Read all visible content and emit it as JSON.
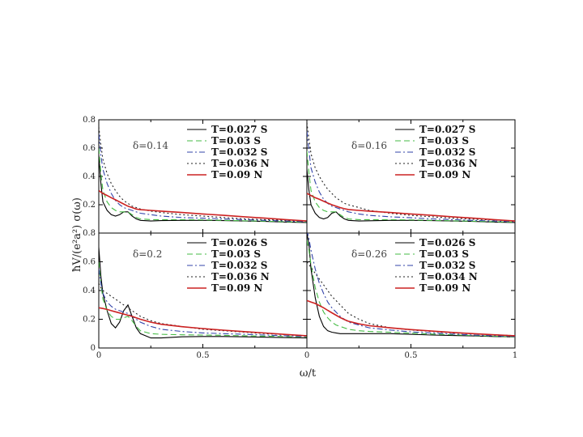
{
  "figure": {
    "ylabel": "ħV/(e²a²) σ(ω)",
    "xlabel": "ω/t"
  },
  "chart_data": [
    {
      "type": "line",
      "label": "δ=0.14",
      "xlim": [
        0,
        1
      ],
      "ylim": [
        0,
        0.8
      ],
      "xticks": [],
      "yticks": [
        "0.2",
        "0.4",
        "0.6",
        "0.8"
      ],
      "legend_position": "top-right",
      "series": [
        {
          "name": "T=0.027 S",
          "color": "#000000",
          "dash": "solid",
          "x": [
            0,
            0.01,
            0.02,
            0.04,
            0.06,
            0.08,
            0.1,
            0.12,
            0.14,
            0.16,
            0.18,
            0.2,
            0.25,
            0.3,
            0.4,
            0.5,
            0.6,
            0.7,
            0.8,
            0.9,
            1.0
          ],
          "y": [
            0.55,
            0.35,
            0.22,
            0.16,
            0.13,
            0.12,
            0.13,
            0.15,
            0.15,
            0.12,
            0.1,
            0.09,
            0.085,
            0.088,
            0.09,
            0.09,
            0.088,
            0.085,
            0.082,
            0.078,
            0.075
          ]
        },
        {
          "name": "T=0.03 S",
          "color": "#44bb44",
          "dash": "dashed",
          "x": [
            0,
            0.01,
            0.02,
            0.04,
            0.06,
            0.08,
            0.1,
            0.12,
            0.14,
            0.16,
            0.18,
            0.2,
            0.25,
            0.3,
            0.4,
            0.5,
            0.6,
            0.7,
            0.8,
            0.9,
            1.0
          ],
          "y": [
            0.6,
            0.42,
            0.3,
            0.22,
            0.18,
            0.16,
            0.15,
            0.15,
            0.15,
            0.13,
            0.11,
            0.1,
            0.095,
            0.095,
            0.095,
            0.093,
            0.09,
            0.087,
            0.084,
            0.08,
            0.077
          ]
        },
        {
          "name": "T=0.032 S",
          "color": "#3344aa",
          "dash": "dashdot",
          "x": [
            0,
            0.01,
            0.02,
            0.04,
            0.06,
            0.08,
            0.1,
            0.12,
            0.14,
            0.16,
            0.18,
            0.2,
            0.25,
            0.3,
            0.4,
            0.5,
            0.6,
            0.7,
            0.8,
            0.9,
            1.0
          ],
          "y": [
            0.7,
            0.55,
            0.45,
            0.35,
            0.28,
            0.23,
            0.2,
            0.18,
            0.17,
            0.16,
            0.15,
            0.14,
            0.13,
            0.12,
            0.11,
            0.105,
            0.1,
            0.095,
            0.09,
            0.085,
            0.08
          ]
        },
        {
          "name": "T=0.036 N",
          "color": "#222222",
          "dash": "dotted",
          "x": [
            0,
            0.01,
            0.02,
            0.04,
            0.06,
            0.08,
            0.1,
            0.12,
            0.14,
            0.16,
            0.18,
            0.2,
            0.25,
            0.3,
            0.4,
            0.5,
            0.6,
            0.7,
            0.8,
            0.9,
            1.0
          ],
          "y": [
            0.75,
            0.62,
            0.52,
            0.42,
            0.35,
            0.3,
            0.26,
            0.23,
            0.21,
            0.19,
            0.18,
            0.17,
            0.155,
            0.145,
            0.13,
            0.12,
            0.11,
            0.1,
            0.095,
            0.09,
            0.085
          ]
        },
        {
          "name": "T=0.09 N",
          "color": "#cc2222",
          "dash": "solid",
          "x": [
            0,
            0.02,
            0.04,
            0.06,
            0.08,
            0.1,
            0.12,
            0.14,
            0.16,
            0.18,
            0.2,
            0.25,
            0.3,
            0.4,
            0.5,
            0.6,
            0.7,
            0.8,
            0.9,
            1.0
          ],
          "y": [
            0.3,
            0.28,
            0.265,
            0.25,
            0.235,
            0.22,
            0.205,
            0.19,
            0.18,
            0.17,
            0.165,
            0.16,
            0.155,
            0.145,
            0.135,
            0.125,
            0.115,
            0.105,
            0.095,
            0.085
          ]
        }
      ]
    },
    {
      "type": "line",
      "label": "δ=0.16",
      "xlim": [
        0,
        1
      ],
      "ylim": [
        0,
        0.8
      ],
      "xticks": [],
      "yticks": [],
      "legend_position": "top-right",
      "series": [
        {
          "name": "T=0.027 S",
          "color": "#000000",
          "dash": "solid",
          "x": [
            0,
            0.01,
            0.02,
            0.04,
            0.06,
            0.08,
            0.1,
            0.12,
            0.14,
            0.16,
            0.18,
            0.2,
            0.25,
            0.3,
            0.4,
            0.5,
            0.6,
            0.7,
            0.8,
            0.9,
            1.0
          ],
          "y": [
            0.45,
            0.3,
            0.2,
            0.14,
            0.11,
            0.1,
            0.11,
            0.14,
            0.15,
            0.12,
            0.1,
            0.09,
            0.085,
            0.087,
            0.09,
            0.09,
            0.088,
            0.085,
            0.082,
            0.078,
            0.075
          ]
        },
        {
          "name": "T=0.03 S",
          "color": "#44bb44",
          "dash": "dashed",
          "x": [
            0,
            0.01,
            0.02,
            0.04,
            0.06,
            0.08,
            0.1,
            0.12,
            0.14,
            0.16,
            0.18,
            0.2,
            0.25,
            0.3,
            0.4,
            0.5,
            0.6,
            0.7,
            0.8,
            0.9,
            1.0
          ],
          "y": [
            0.58,
            0.42,
            0.3,
            0.22,
            0.18,
            0.16,
            0.15,
            0.15,
            0.15,
            0.13,
            0.11,
            0.1,
            0.095,
            0.095,
            0.095,
            0.093,
            0.09,
            0.087,
            0.084,
            0.08,
            0.077
          ]
        },
        {
          "name": "T=0.032 S",
          "color": "#3344aa",
          "dash": "dashdot",
          "x": [
            0,
            0.01,
            0.02,
            0.04,
            0.06,
            0.08,
            0.1,
            0.12,
            0.14,
            0.16,
            0.18,
            0.2,
            0.25,
            0.3,
            0.4,
            0.5,
            0.6,
            0.7,
            0.8,
            0.9,
            1.0
          ],
          "y": [
            0.72,
            0.58,
            0.46,
            0.36,
            0.29,
            0.24,
            0.21,
            0.19,
            0.18,
            0.17,
            0.16,
            0.15,
            0.135,
            0.125,
            0.115,
            0.108,
            0.1,
            0.095,
            0.09,
            0.085,
            0.08
          ]
        },
        {
          "name": "T=0.036 N",
          "color": "#222222",
          "dash": "dotted",
          "x": [
            0,
            0.01,
            0.02,
            0.04,
            0.06,
            0.08,
            0.1,
            0.12,
            0.14,
            0.16,
            0.18,
            0.2,
            0.25,
            0.3,
            0.4,
            0.5,
            0.6,
            0.7,
            0.8,
            0.9,
            1.0
          ],
          "y": [
            0.78,
            0.66,
            0.56,
            0.46,
            0.4,
            0.35,
            0.31,
            0.28,
            0.25,
            0.23,
            0.21,
            0.2,
            0.18,
            0.16,
            0.14,
            0.125,
            0.115,
            0.105,
            0.098,
            0.092,
            0.086
          ]
        },
        {
          "name": "T=0.09 N",
          "color": "#cc2222",
          "dash": "solid",
          "x": [
            0,
            0.02,
            0.04,
            0.06,
            0.08,
            0.1,
            0.12,
            0.14,
            0.16,
            0.18,
            0.2,
            0.25,
            0.3,
            0.4,
            0.5,
            0.6,
            0.7,
            0.8,
            0.9,
            1.0
          ],
          "y": [
            0.28,
            0.265,
            0.25,
            0.238,
            0.225,
            0.212,
            0.2,
            0.19,
            0.18,
            0.172,
            0.166,
            0.16,
            0.155,
            0.145,
            0.135,
            0.125,
            0.115,
            0.105,
            0.095,
            0.085
          ]
        }
      ]
    },
    {
      "type": "line",
      "label": "δ=0.2",
      "xlim": [
        0,
        1
      ],
      "ylim": [
        0,
        0.8
      ],
      "xticks": [
        "0",
        "0.5"
      ],
      "yticks": [
        "0",
        "0.2",
        "0.4",
        "0.6",
        "0.8"
      ],
      "legend_position": "top-right",
      "series": [
        {
          "name": "T=0.026 S",
          "color": "#000000",
          "dash": "solid",
          "x": [
            0,
            0.01,
            0.02,
            0.04,
            0.06,
            0.08,
            0.1,
            0.12,
            0.14,
            0.16,
            0.18,
            0.2,
            0.25,
            0.3,
            0.4,
            0.5,
            0.6,
            0.7,
            0.8,
            0.9,
            1.0
          ],
          "y": [
            0.7,
            0.5,
            0.38,
            0.26,
            0.17,
            0.14,
            0.18,
            0.26,
            0.3,
            0.22,
            0.14,
            0.1,
            0.07,
            0.07,
            0.078,
            0.08,
            0.08,
            0.078,
            0.075,
            0.072,
            0.07
          ]
        },
        {
          "name": "T=0.03 S",
          "color": "#44bb44",
          "dash": "dashed",
          "x": [
            0,
            0.01,
            0.02,
            0.04,
            0.06,
            0.08,
            0.1,
            0.12,
            0.14,
            0.16,
            0.18,
            0.2,
            0.25,
            0.3,
            0.4,
            0.5,
            0.6,
            0.7,
            0.8,
            0.9,
            1.0
          ],
          "y": [
            0.6,
            0.45,
            0.34,
            0.26,
            0.22,
            0.2,
            0.2,
            0.21,
            0.22,
            0.19,
            0.15,
            0.12,
            0.1,
            0.095,
            0.092,
            0.09,
            0.088,
            0.085,
            0.082,
            0.08,
            0.078
          ]
        },
        {
          "name": "T=0.032 S",
          "color": "#3344aa",
          "dash": "dashdot",
          "x": [
            0,
            0.01,
            0.02,
            0.04,
            0.06,
            0.08,
            0.1,
            0.12,
            0.14,
            0.16,
            0.18,
            0.2,
            0.25,
            0.3,
            0.4,
            0.5,
            0.6,
            0.7,
            0.8,
            0.9,
            1.0
          ],
          "y": [
            0.55,
            0.45,
            0.38,
            0.32,
            0.29,
            0.27,
            0.26,
            0.25,
            0.24,
            0.22,
            0.2,
            0.18,
            0.15,
            0.13,
            0.115,
            0.105,
            0.1,
            0.095,
            0.09,
            0.085,
            0.08
          ]
        },
        {
          "name": "T=0.036 N",
          "color": "#222222",
          "dash": "dotted",
          "x": [
            0,
            0.01,
            0.02,
            0.04,
            0.06,
            0.08,
            0.1,
            0.12,
            0.14,
            0.16,
            0.18,
            0.2,
            0.25,
            0.3,
            0.4,
            0.5,
            0.6,
            0.7,
            0.8,
            0.9,
            1.0
          ],
          "y": [
            0.45,
            0.42,
            0.4,
            0.38,
            0.36,
            0.34,
            0.32,
            0.3,
            0.28,
            0.26,
            0.24,
            0.22,
            0.19,
            0.17,
            0.15,
            0.13,
            0.12,
            0.11,
            0.1,
            0.093,
            0.086
          ]
        },
        {
          "name": "T=0.09 N",
          "color": "#cc2222",
          "dash": "solid",
          "x": [
            0,
            0.02,
            0.04,
            0.06,
            0.08,
            0.1,
            0.12,
            0.14,
            0.16,
            0.18,
            0.2,
            0.25,
            0.3,
            0.4,
            0.5,
            0.6,
            0.7,
            0.8,
            0.9,
            1.0
          ],
          "y": [
            0.28,
            0.275,
            0.268,
            0.26,
            0.252,
            0.244,
            0.236,
            0.228,
            0.22,
            0.21,
            0.2,
            0.18,
            0.165,
            0.148,
            0.135,
            0.124,
            0.114,
            0.104,
            0.094,
            0.085
          ]
        }
      ]
    },
    {
      "type": "line",
      "label": "δ=0.26",
      "xlim": [
        0,
        1
      ],
      "ylim": [
        0,
        0.8
      ],
      "xticks": [
        "0",
        "0.5",
        "1"
      ],
      "yticks": [],
      "legend_position": "top-right",
      "series": [
        {
          "name": "T=0.026 S",
          "color": "#000000",
          "dash": "solid",
          "x": [
            0,
            0.01,
            0.02,
            0.04,
            0.06,
            0.08,
            0.1,
            0.12,
            0.14,
            0.16,
            0.18,
            0.2,
            0.25,
            0.3,
            0.4,
            0.5,
            0.6,
            0.7,
            0.8,
            0.9,
            1.0
          ],
          "y": [
            0.8,
            0.72,
            0.55,
            0.35,
            0.22,
            0.15,
            0.12,
            0.11,
            0.105,
            0.1,
            0.1,
            0.1,
            0.1,
            0.1,
            0.1,
            0.095,
            0.09,
            0.087,
            0.084,
            0.08,
            0.077
          ]
        },
        {
          "name": "T=0.03 S",
          "color": "#44bb44",
          "dash": "dashed",
          "x": [
            0,
            0.01,
            0.02,
            0.04,
            0.06,
            0.08,
            0.1,
            0.12,
            0.14,
            0.16,
            0.18,
            0.2,
            0.25,
            0.3,
            0.4,
            0.5,
            0.6,
            0.7,
            0.8,
            0.9,
            1.0
          ],
          "y": [
            0.75,
            0.68,
            0.58,
            0.42,
            0.32,
            0.25,
            0.21,
            0.18,
            0.16,
            0.15,
            0.14,
            0.13,
            0.12,
            0.115,
            0.11,
            0.103,
            0.097,
            0.092,
            0.087,
            0.082,
            0.078
          ]
        },
        {
          "name": "T=0.032 S",
          "color": "#3344aa",
          "dash": "dashdot",
          "x": [
            0,
            0.01,
            0.02,
            0.04,
            0.06,
            0.08,
            0.1,
            0.12,
            0.14,
            0.16,
            0.18,
            0.2,
            0.25,
            0.3,
            0.4,
            0.5,
            0.6,
            0.7,
            0.8,
            0.9,
            1.0
          ],
          "y": [
            0.82,
            0.76,
            0.68,
            0.55,
            0.45,
            0.38,
            0.32,
            0.28,
            0.25,
            0.22,
            0.2,
            0.18,
            0.16,
            0.14,
            0.125,
            0.112,
            0.104,
            0.097,
            0.09,
            0.085,
            0.08
          ]
        },
        {
          "name": "T=0.034 N",
          "color": "#222222",
          "dash": "dotted",
          "x": [
            0,
            0.01,
            0.02,
            0.04,
            0.06,
            0.08,
            0.1,
            0.12,
            0.14,
            0.16,
            0.18,
            0.2,
            0.25,
            0.3,
            0.4,
            0.5,
            0.6,
            0.7,
            0.8,
            0.9,
            1.0
          ],
          "y": [
            0.6,
            0.58,
            0.56,
            0.52,
            0.48,
            0.44,
            0.4,
            0.36,
            0.33,
            0.3,
            0.27,
            0.24,
            0.2,
            0.17,
            0.14,
            0.125,
            0.115,
            0.105,
            0.098,
            0.092,
            0.086
          ]
        },
        {
          "name": "T=0.09 N",
          "color": "#cc2222",
          "dash": "solid",
          "x": [
            0,
            0.02,
            0.04,
            0.06,
            0.08,
            0.1,
            0.12,
            0.14,
            0.16,
            0.18,
            0.2,
            0.25,
            0.3,
            0.4,
            0.5,
            0.6,
            0.7,
            0.8,
            0.9,
            1.0
          ],
          "y": [
            0.33,
            0.32,
            0.31,
            0.295,
            0.28,
            0.262,
            0.245,
            0.228,
            0.212,
            0.198,
            0.186,
            0.168,
            0.155,
            0.14,
            0.128,
            0.118,
            0.108,
            0.1,
            0.092,
            0.085
          ]
        }
      ]
    }
  ]
}
